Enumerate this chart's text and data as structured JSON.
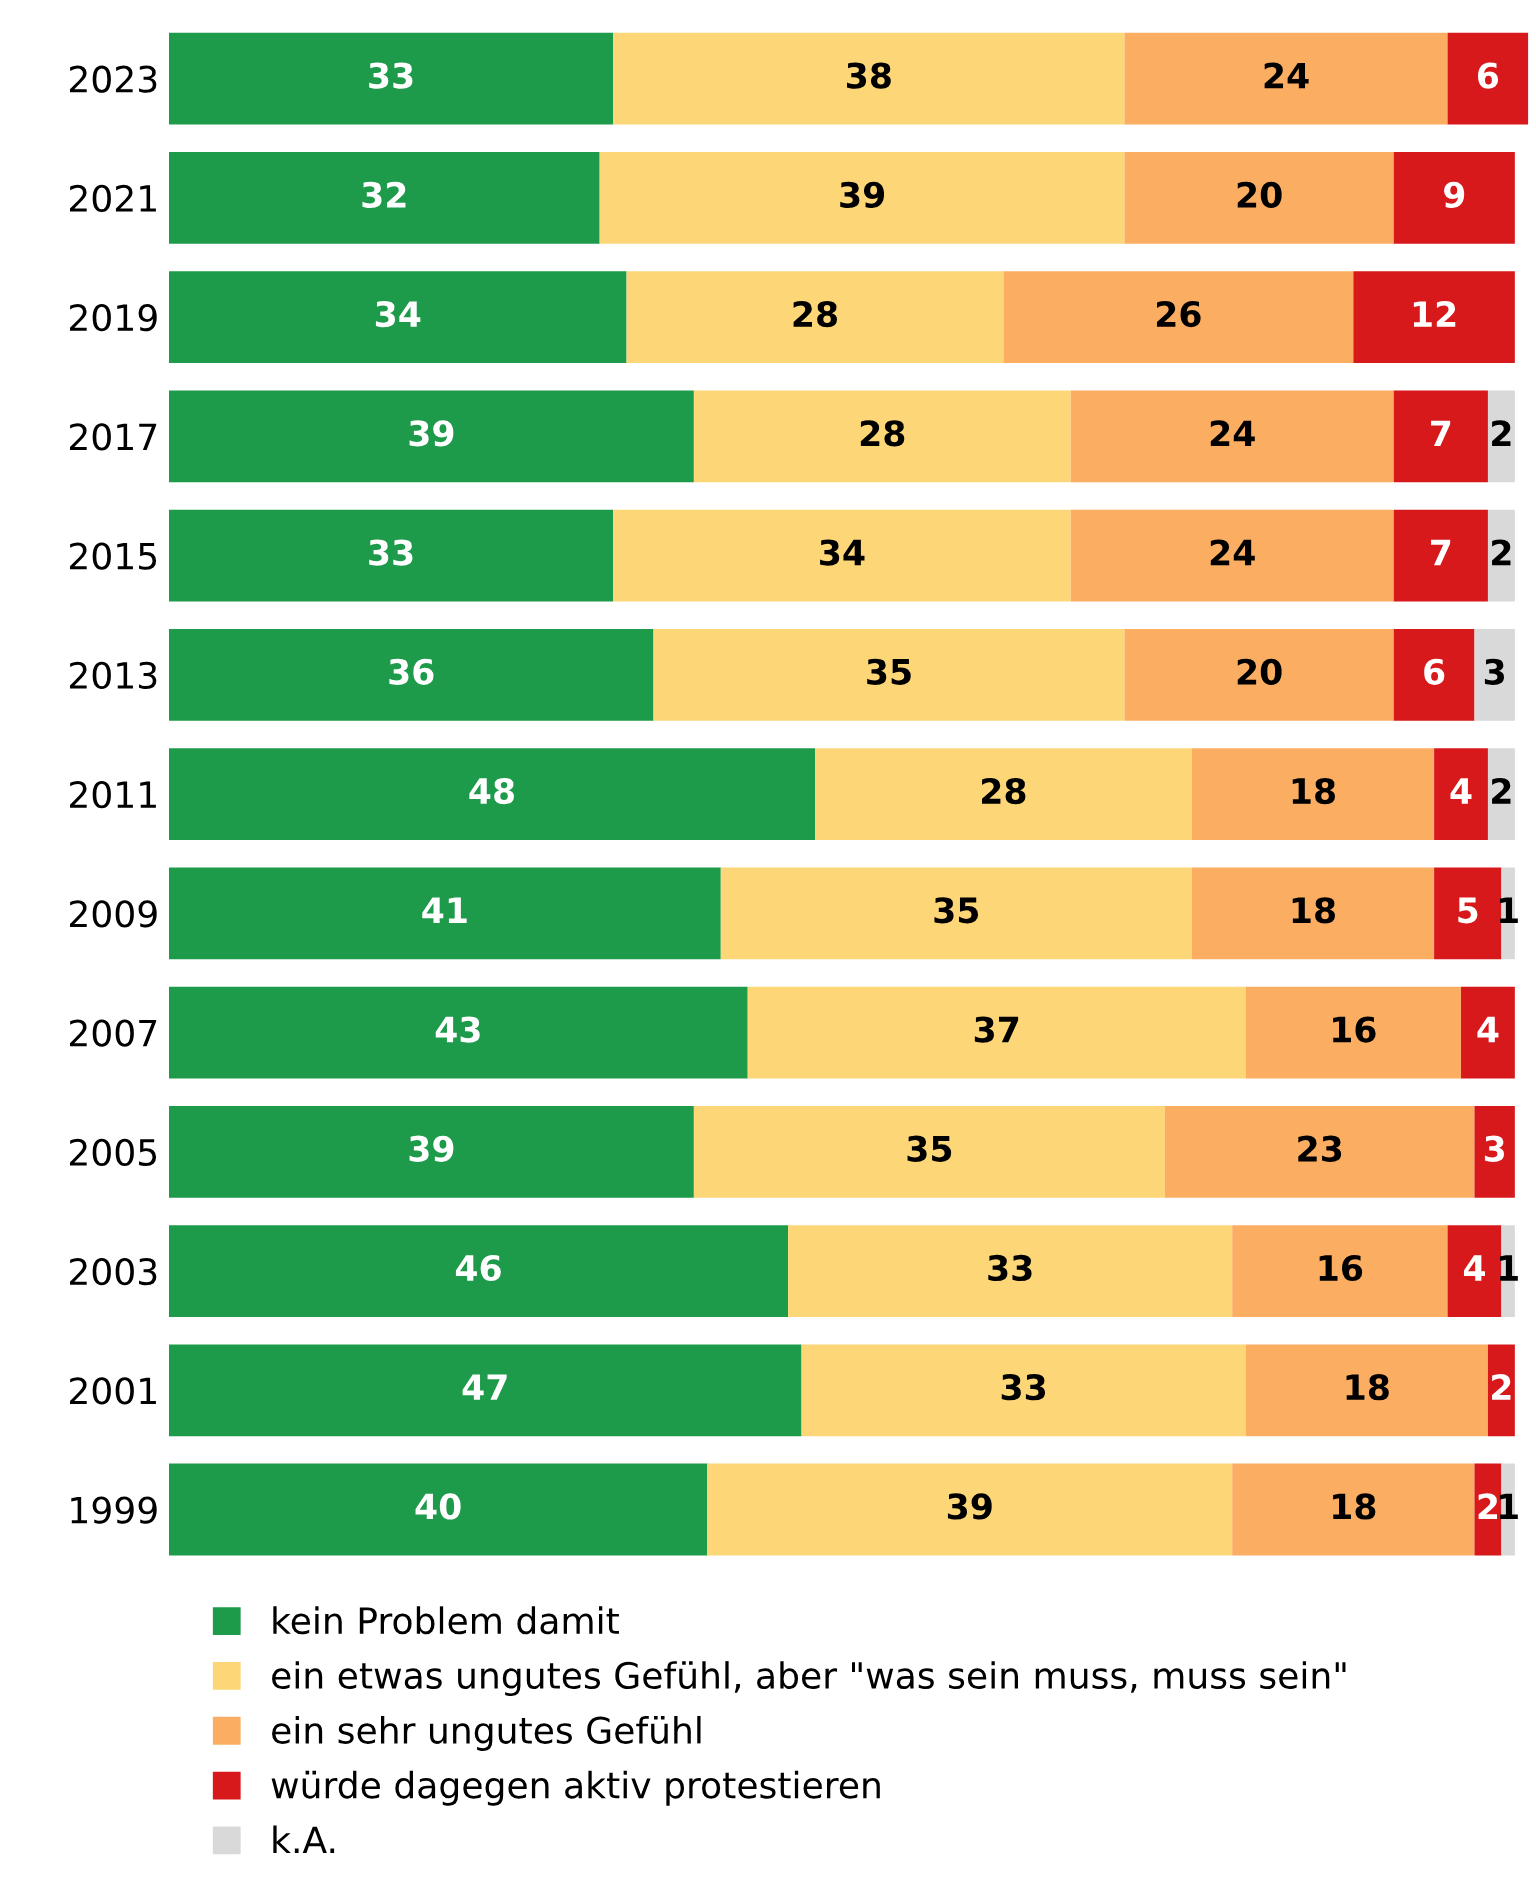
{
  "chart_data": {
    "type": "bar",
    "orientation": "horizontal",
    "stacked": true,
    "data_labels": true,
    "legend": "bottom",
    "grid": false,
    "categories": [
      "2023",
      "2021",
      "2019",
      "2017",
      "2015",
      "2013",
      "2011",
      "2009",
      "2007",
      "2005",
      "2003",
      "2001",
      "1999"
    ],
    "series": [
      {
        "name": "kein Problem damit",
        "color": "#1e9a4b",
        "values": [
          33,
          32,
          34,
          39,
          33,
          36,
          48,
          41,
          43,
          39,
          46,
          47,
          40
        ]
      },
      {
        "name": "ein etwas ungutes Gefühl, aber \"was sein muss, muss sein\"",
        "color": "#fcd677",
        "values": [
          38,
          39,
          28,
          28,
          34,
          35,
          28,
          35,
          37,
          35,
          33,
          33,
          39
        ]
      },
      {
        "name": "ein sehr ungutes Gefühl",
        "color": "#fbae62",
        "values": [
          24,
          20,
          26,
          24,
          24,
          20,
          18,
          18,
          16,
          23,
          16,
          18,
          18
        ]
      },
      {
        "name": "würde dagegen aktiv protestieren",
        "color": "#d7191c",
        "values": [
          6,
          9,
          12,
          7,
          7,
          6,
          4,
          5,
          4,
          3,
          4,
          2,
          2
        ]
      },
      {
        "name": "k.A.",
        "color": "#d9d9d9",
        "values": [
          null,
          null,
          null,
          2,
          2,
          3,
          2,
          1,
          null,
          null,
          1,
          null,
          1
        ]
      }
    ]
  }
}
